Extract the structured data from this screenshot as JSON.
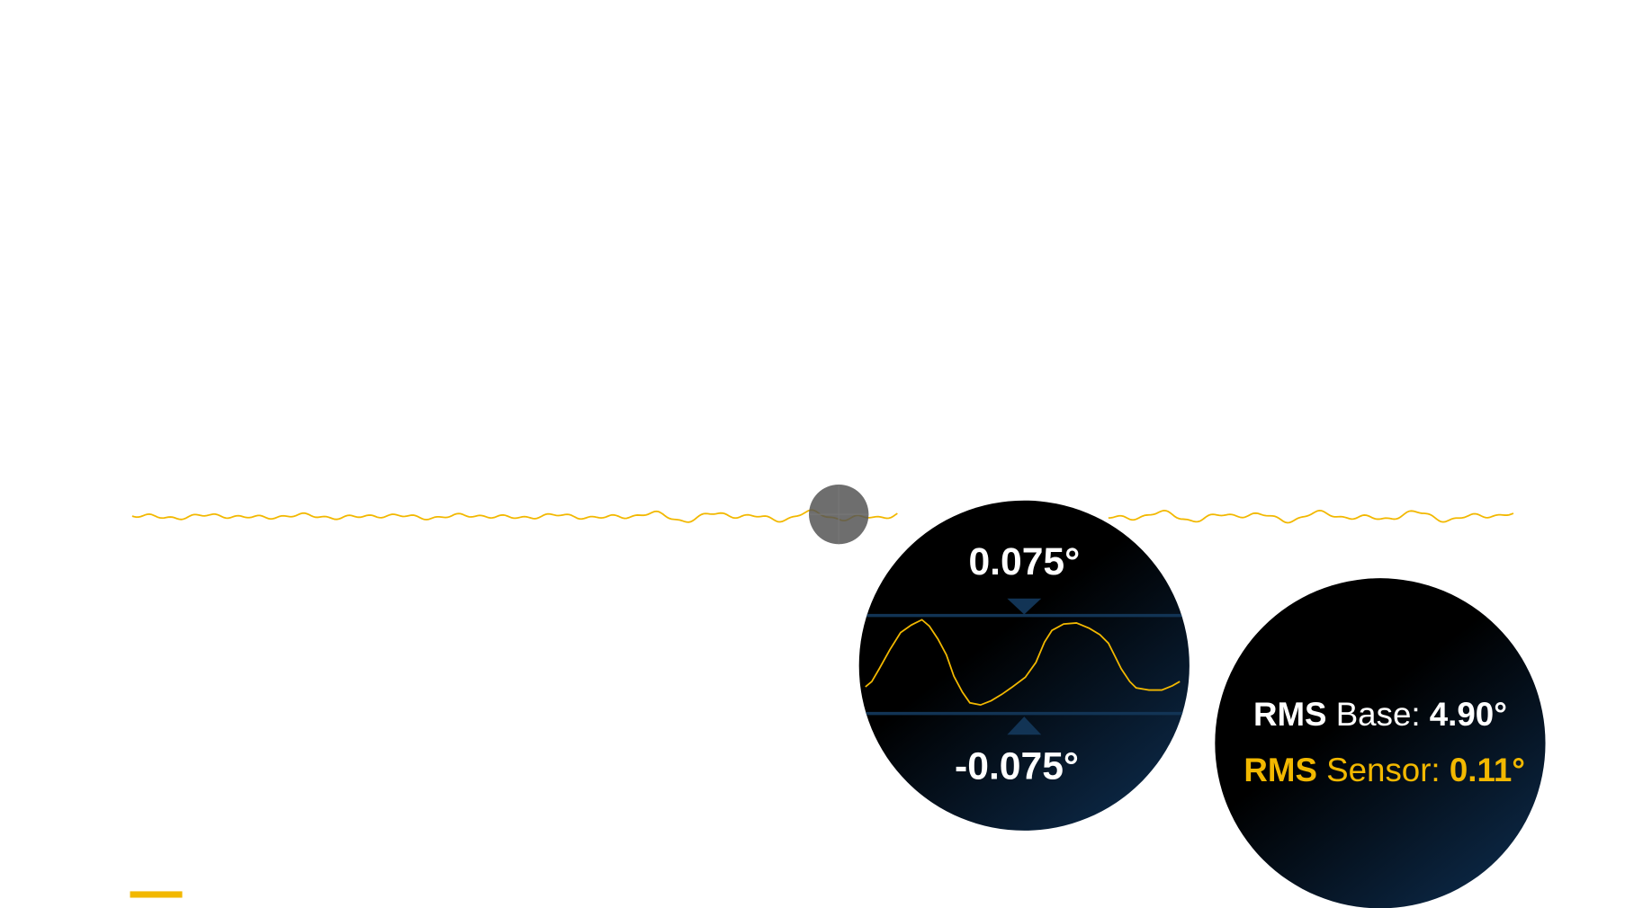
{
  "zoom": {
    "upper_label": "0.075°",
    "lower_label": "-0.075°"
  },
  "rms": {
    "base": {
      "prefix": "RMS",
      "label": "Base:",
      "value": "4.90°"
    },
    "sensor": {
      "prefix": "RMS",
      "label": "Sensor:",
      "value": "0.11°"
    }
  }
}
